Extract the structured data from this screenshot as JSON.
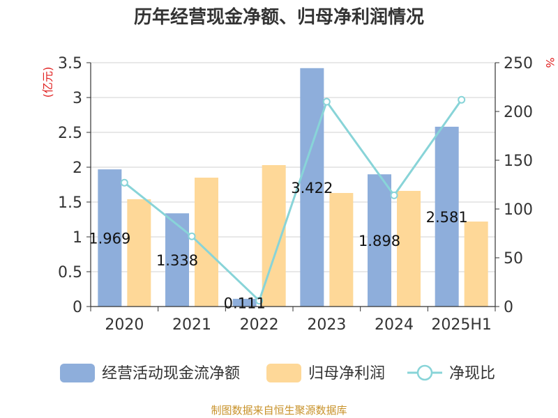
{
  "chart_data": {
    "type": "bar",
    "title": "历年经营现金净额、归母净利润情况",
    "categories": [
      "2020",
      "2021",
      "2022",
      "2023",
      "2024",
      "2025H1"
    ],
    "y_left": {
      "unit": "(亿元)",
      "range": [
        0,
        3.5
      ],
      "ticks": [
        "0",
        "0.5",
        "1",
        "1.5",
        "2",
        "2.5",
        "3",
        "3.5"
      ]
    },
    "y_right": {
      "unit": "%",
      "range": [
        0,
        250
      ],
      "ticks": [
        "0",
        "50",
        "100",
        "150",
        "200",
        "250"
      ]
    },
    "grid": true,
    "legend_position": "bottom",
    "series": [
      {
        "name": "经营活动现金流净额",
        "type": "bar",
        "axis": "left",
        "color": "#8eaedb",
        "values": [
          1.969,
          1.338,
          0.111,
          3.422,
          1.898,
          2.581
        ],
        "labels": [
          "1.969",
          "1.338",
          "0.111",
          "3.422",
          "1.898",
          "2.581"
        ]
      },
      {
        "name": "归母净利润",
        "type": "bar",
        "axis": "left",
        "color": "#fed898",
        "values": [
          1.54,
          1.85,
          2.03,
          1.63,
          1.66,
          1.22
        ]
      },
      {
        "name": "净现比",
        "type": "line",
        "axis": "right",
        "color": "#88d4d8",
        "values": [
          127,
          72,
          6,
          210,
          114,
          212
        ]
      }
    ],
    "source": "制图数据来自恒生聚源数据库"
  }
}
